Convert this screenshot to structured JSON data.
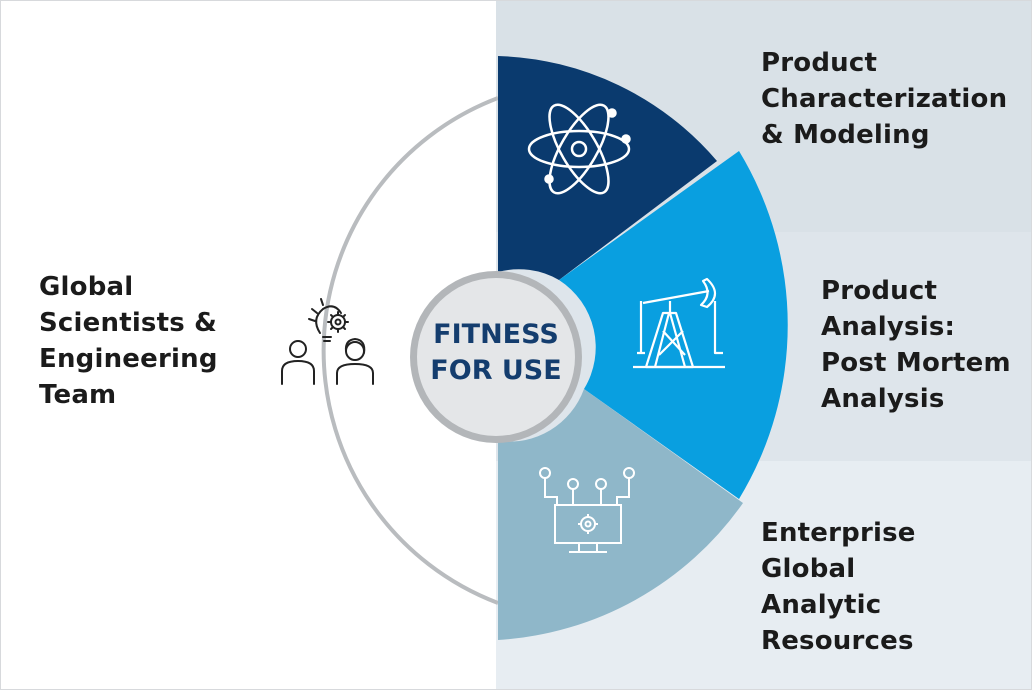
{
  "center": {
    "text": "FITNESS\nFOR USE"
  },
  "left": {
    "label": "Global\nScientists &\nEngineering\nTeam",
    "icon": "team-idea-icon"
  },
  "segments": [
    {
      "label": "Product\nCharacterization\n& Modeling",
      "color": "#0a3a6e",
      "icon": "atom-icon"
    },
    {
      "label": "Product\nAnalysis:\nPost Mortem\nAnalysis",
      "color": "#099fe0",
      "icon": "oil-pump-icon"
    },
    {
      "label": "Enterprise\nGlobal\nAnalytic\nResources",
      "color": "#8fb7c9",
      "icon": "network-monitor-icon"
    }
  ],
  "colors": {
    "band_top": "#d9e1e7",
    "band_mid": "#dee5eb",
    "band_bottom": "#e7edf2",
    "ring": "#b9bcbf",
    "center_fill": "#e4e6e8",
    "center_text": "#143d6e"
  }
}
